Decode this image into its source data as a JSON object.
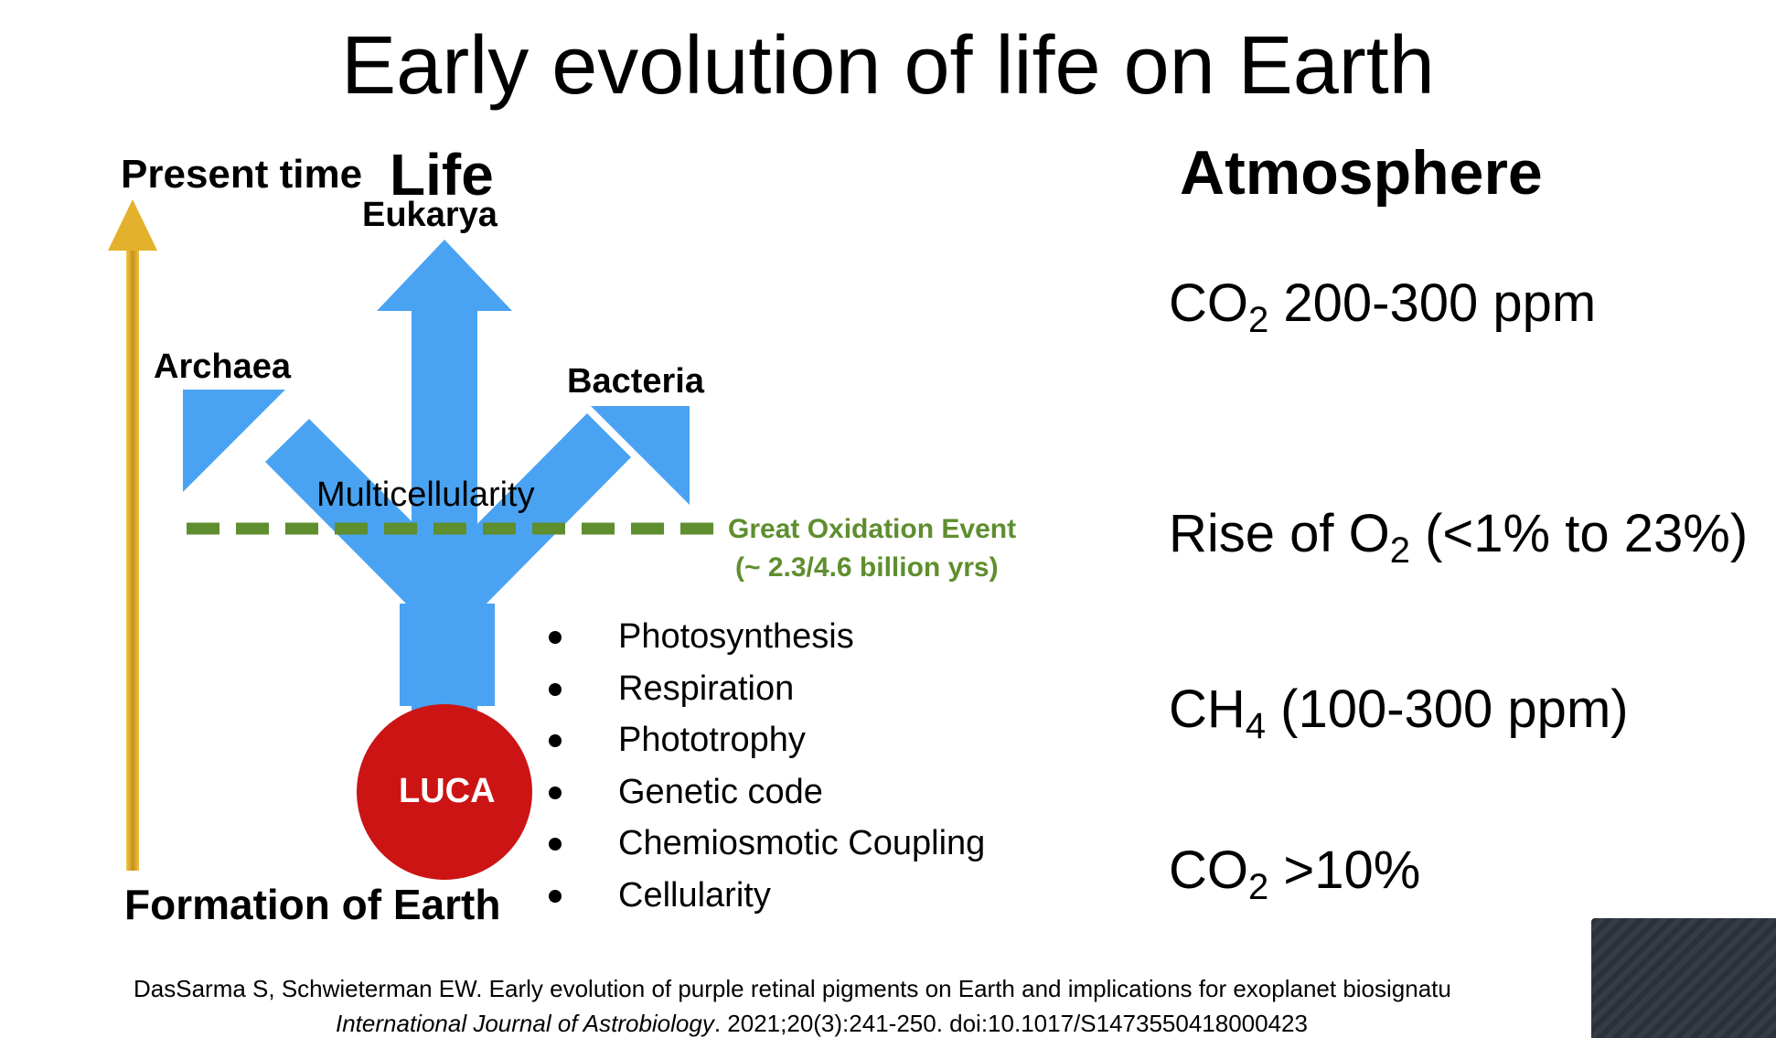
{
  "slide": {
    "title": "Early evolution of life on Earth"
  },
  "diagram": {
    "time_top_label": "Present time",
    "life_heading": "Life",
    "time_bottom_label": "Formation of Earth",
    "branches": [
      "Eukarya",
      "Archaea",
      "Bacteria"
    ],
    "multicellularity_label": "Multicellularity",
    "great_oxidation": {
      "label": "Great Oxidation Event",
      "date": "(~ 2.3/4.6 billion yrs)"
    },
    "luca_label": "LUCA",
    "traits": [
      "Photosynthesis",
      "Respiration",
      "Phototrophy",
      "Genetic code",
      "Chemiosmotic Coupling",
      "Cellularity"
    ],
    "colors": {
      "branch_blue": "#4aa3f2",
      "luca_red": "#cc1414",
      "time_arrow_gold": "#d4a21a",
      "goe_green": "#5e8e2e"
    }
  },
  "atmosphere": {
    "heading": "Atmosphere",
    "items": [
      {
        "pre": "CO",
        "sub": "2",
        "post": " 200-300 ppm"
      },
      {
        "pre": "Rise of O",
        "sub": "2",
        "post": " (<1% to 23%)"
      },
      {
        "pre": "CH",
        "sub": "4",
        "post": " (100-300 ppm)"
      },
      {
        "pre": "CO",
        "sub": "2",
        "post": " >10%"
      }
    ]
  },
  "citation": {
    "line1": "DasSarma S, Schwieterman EW. Early evolution of purple retinal pigments on Earth and implications for exoplanet biosignatu",
    "journal": "International Journal of Astrobiology",
    "line2_rest": ". 2021;20(3):241-250. doi:10.1017/S1473550418000423"
  }
}
